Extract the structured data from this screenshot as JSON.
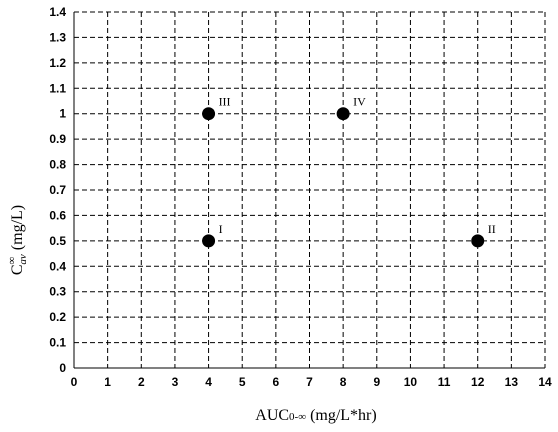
{
  "chart_data": {
    "type": "scatter",
    "xlabel_main": "AUC",
    "xlabel_sub": "0-∞",
    "xlabel_unit": " (mg/L*hr)",
    "ylabel_main": "C",
    "ylabel_sup": "∞",
    "ylabel_sub": "av",
    "ylabel_unit": " (mg/L)",
    "xlim": [
      0,
      14
    ],
    "ylim": [
      0,
      1.4
    ],
    "x_ticks": [
      "0",
      "1",
      "2",
      "3",
      "4",
      "5",
      "6",
      "7",
      "8",
      "9",
      "10",
      "11",
      "12",
      "13",
      "14"
    ],
    "y_ticks": [
      "0",
      "0.1",
      "0.2",
      "0.3",
      "0.4",
      "0.5",
      "0.6",
      "0.7",
      "0.8",
      "0.9",
      "1",
      "1.1",
      "1.2",
      "1.3",
      "1.4"
    ],
    "grid": true,
    "marker_color": "#000000",
    "points": [
      {
        "x": 4,
        "y": 0.5,
        "label": "I"
      },
      {
        "x": 12,
        "y": 0.5,
        "label": "II"
      },
      {
        "x": 4,
        "y": 1.0,
        "label": "III"
      },
      {
        "x": 8,
        "y": 1.0,
        "label": "IV"
      }
    ]
  }
}
